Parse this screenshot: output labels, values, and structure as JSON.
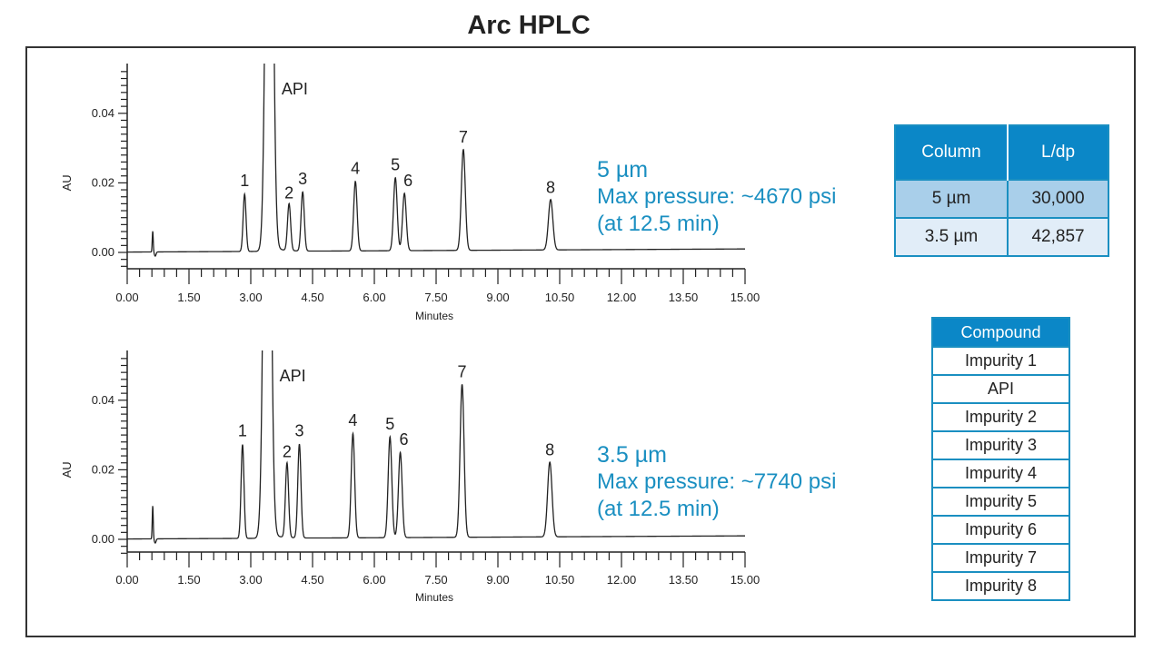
{
  "title": "Arc HPLC",
  "panels": [
    {
      "annotation": {
        "size": "5 µm",
        "pressure": "Max pressure: ~4670 psi",
        "time": "(at 12.5 min)"
      }
    },
    {
      "annotation": {
        "size": "3.5 µm",
        "pressure": "Max pressure: ~7740 psi",
        "time": "(at 12.5 min)"
      }
    }
  ],
  "ldp_table": {
    "headers": [
      "Column",
      "L/dp"
    ],
    "rows": [
      [
        "5 µm",
        "30,000"
      ],
      [
        "3.5 µm",
        "42,857"
      ]
    ]
  },
  "compound_table": {
    "header": "Compound",
    "rows": [
      "Impurity 1",
      "API",
      "Impurity 2",
      "Impurity 3",
      "Impurity 4",
      "Impurity 5",
      "Impurity 6",
      "Impurity 7",
      "Impurity 8"
    ]
  },
  "colors": {
    "accent": "#1a8fc1",
    "header_fill": "#0b87c7",
    "row1_fill": "#a9cfea",
    "row2_fill": "#e1edf8",
    "trace": "#222222"
  },
  "chart_data": [
    {
      "type": "line",
      "title": "Arc HPLC — 5 µm column",
      "xlabel": "Minutes",
      "ylabel": "AU",
      "xlim": [
        0,
        15
      ],
      "ylim": [
        -0.004,
        0.054
      ],
      "xticks": [
        "0.00",
        "1.50",
        "3.00",
        "4.50",
        "6.00",
        "7.50",
        "9.00",
        "10.50",
        "12.00",
        "13.50",
        "15.00"
      ],
      "yticks": [
        "0.00",
        "0.02",
        "0.04"
      ],
      "grid": false,
      "peaks": [
        {
          "label": "void",
          "rt": 0.62,
          "height": 0.006
        },
        {
          "label": "1",
          "rt": 2.85,
          "height": 0.0165
        },
        {
          "label": "API",
          "rt": 3.45,
          "height": 0.2
        },
        {
          "label": "2",
          "rt": 3.93,
          "height": 0.0135
        },
        {
          "label": "3",
          "rt": 4.26,
          "height": 0.017
        },
        {
          "label": "4",
          "rt": 5.54,
          "height": 0.02
        },
        {
          "label": "5",
          "rt": 6.51,
          "height": 0.021
        },
        {
          "label": "6",
          "rt": 6.73,
          "height": 0.0165
        },
        {
          "label": "7",
          "rt": 8.16,
          "height": 0.029
        },
        {
          "label": "8",
          "rt": 10.28,
          "height": 0.0145
        }
      ],
      "annotations": [
        "5 µm",
        "Max pressure: ~4670 psi",
        "(at 12.5 min)"
      ]
    },
    {
      "type": "line",
      "title": "Arc HPLC — 3.5 µm column",
      "xlabel": "Minutes",
      "ylabel": "AU",
      "xlim": [
        0,
        15
      ],
      "ylim": [
        -0.004,
        0.054
      ],
      "xticks": [
        "0.00",
        "1.50",
        "3.00",
        "4.50",
        "6.00",
        "7.50",
        "9.00",
        "10.50",
        "12.00",
        "13.50",
        "15.00"
      ],
      "yticks": [
        "0.00",
        "0.02",
        "0.04"
      ],
      "grid": false,
      "peaks": [
        {
          "label": "void",
          "rt": 0.62,
          "height": 0.0095
        },
        {
          "label": "1",
          "rt": 2.8,
          "height": 0.027
        },
        {
          "label": "API",
          "rt": 3.4,
          "height": 0.2
        },
        {
          "label": "2",
          "rt": 3.88,
          "height": 0.0215
        },
        {
          "label": "3",
          "rt": 4.18,
          "height": 0.027
        },
        {
          "label": "4",
          "rt": 5.48,
          "height": 0.03
        },
        {
          "label": "5",
          "rt": 6.38,
          "height": 0.029
        },
        {
          "label": "6",
          "rt": 6.63,
          "height": 0.0245
        },
        {
          "label": "7",
          "rt": 8.13,
          "height": 0.044
        },
        {
          "label": "8",
          "rt": 10.26,
          "height": 0.0215
        }
      ],
      "annotations": [
        "3.5 µm",
        "Max pressure: ~7740 psi",
        "(at 12.5 min)"
      ]
    }
  ]
}
